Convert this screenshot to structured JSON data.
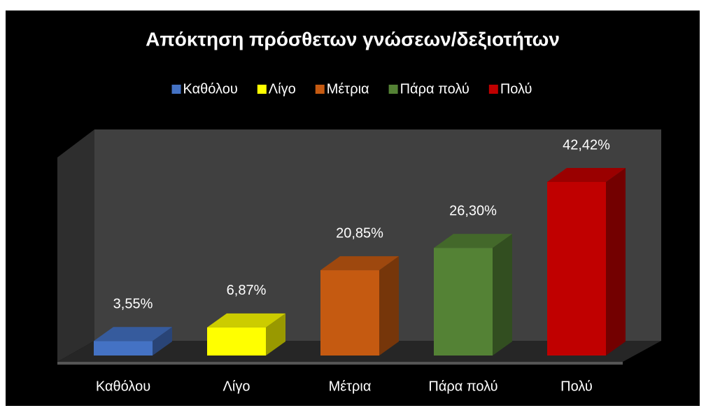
{
  "chart_data": {
    "type": "bar3d",
    "title": "Απόκτηση πρόσθετων γνώσεων/δεξιοτήτων",
    "categories": [
      "Καθόλου",
      "Λίγο",
      "Μέτρια",
      "Πάρα πολύ",
      "Πολύ"
    ],
    "values": [
      3.55,
      6.87,
      20.85,
      26.3,
      42.42
    ],
    "value_labels": [
      "3,55%",
      "6,87%",
      "20,85%",
      "26,30%",
      "42,42%"
    ],
    "colors": [
      "#4472c4",
      "#ffff00",
      "#c55a11",
      "#548235",
      "#c00000"
    ],
    "legend": "top"
  }
}
